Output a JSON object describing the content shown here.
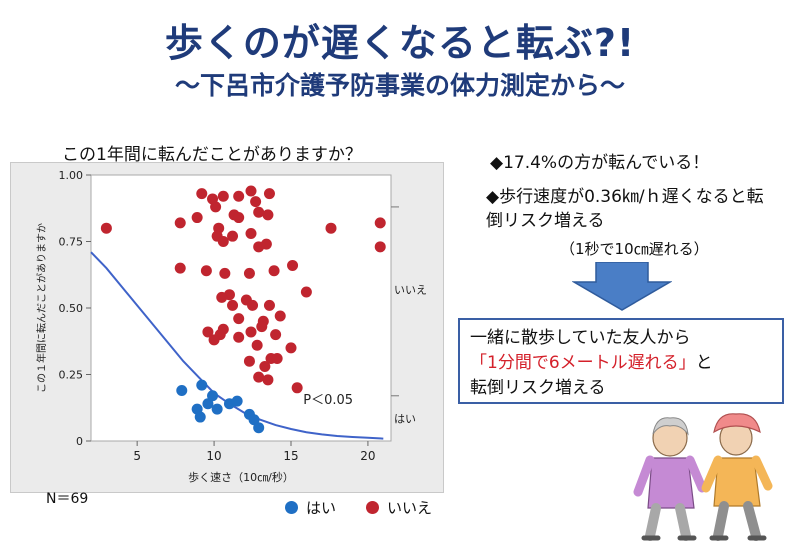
{
  "slide": {
    "title": "歩くのが遅くなると転ぶ?!",
    "subtitle": "〜下呂市介護予防事業の体力測定から〜",
    "chart_question": "この1年間に転んだことがありますか？",
    "n_label": "N＝69",
    "bullets": [
      {
        "text": "◆17.4%の方が転んでいる！"
      },
      {
        "text": "◆歩行速度が0.36㎞/ｈ遅くなると転倒リスク増える",
        "note": "（1秒で10㎝遅れる）"
      }
    ],
    "callout": {
      "line1": "一緒に散歩していた友人から",
      "highlight": "「1分間で6メートル遅れる」",
      "after_highlight": "と",
      "line3": "転倒リスク増える"
    },
    "colors": {
      "title": "#1f3b7a",
      "arrow": "#4a7ec6",
      "red": "#d4202a"
    }
  },
  "chart_data": {
    "type": "scatter",
    "title": "この1年間に転んだことがありますか？",
    "xlabel": "歩く速さ（10㎝/秒）",
    "ylabel": "この１年間に転んだことがありますか",
    "xlim": [
      2,
      21.5
    ],
    "ylim": [
      0,
      1
    ],
    "x_ticks": [
      5,
      10,
      15,
      20
    ],
    "y_ticks": [
      {
        "v": 0,
        "t": "0"
      },
      {
        "v": 0.25,
        "t": "0.25"
      },
      {
        "v": 0.5,
        "t": "0.50"
      },
      {
        "v": 0.75,
        "t": "0.75"
      },
      {
        "v": 1,
        "t": "1.00"
      }
    ],
    "grid": false,
    "annotation": "P＜0.05",
    "right_labels": {
      "no": "いいえ",
      "yes": "はい"
    },
    "legend_position": "bottom",
    "series": [
      {
        "name": "はい",
        "color": "#1f6fc4",
        "points": [
          [
            7.9,
            0.19
          ],
          [
            8.9,
            0.12
          ],
          [
            9.2,
            0.21
          ],
          [
            9.1,
            0.09
          ],
          [
            9.6,
            0.14
          ],
          [
            9.9,
            0.17
          ],
          [
            10.2,
            0.12
          ],
          [
            11.0,
            0.14
          ],
          [
            11.5,
            0.15
          ],
          [
            12.3,
            0.1
          ],
          [
            12.6,
            0.08
          ],
          [
            12.9,
            0.05
          ]
        ]
      },
      {
        "name": "いいえ",
        "color": "#c0252f",
        "points": [
          [
            3.0,
            0.8
          ],
          [
            7.8,
            0.82
          ],
          [
            7.8,
            0.65
          ],
          [
            9.2,
            0.93
          ],
          [
            8.9,
            0.84
          ],
          [
            9.9,
            0.91
          ],
          [
            10.1,
            0.88
          ],
          [
            10.6,
            0.92
          ],
          [
            9.5,
            0.64
          ],
          [
            10.3,
            0.8
          ],
          [
            10.2,
            0.77
          ],
          [
            10.6,
            0.75
          ],
          [
            11.2,
            0.77
          ],
          [
            11.3,
            0.85
          ],
          [
            11.6,
            0.92
          ],
          [
            11.6,
            0.84
          ],
          [
            12.4,
            0.94
          ],
          [
            12.7,
            0.9
          ],
          [
            12.9,
            0.86
          ],
          [
            13.6,
            0.93
          ],
          [
            13.5,
            0.85
          ],
          [
            12.4,
            0.78
          ],
          [
            12.9,
            0.73
          ],
          [
            13.4,
            0.74
          ],
          [
            10.7,
            0.63
          ],
          [
            11.0,
            0.55
          ],
          [
            12.3,
            0.63
          ],
          [
            13.9,
            0.64
          ],
          [
            15.1,
            0.66
          ],
          [
            16.0,
            0.56
          ],
          [
            10.5,
            0.54
          ],
          [
            11.2,
            0.51
          ],
          [
            12.1,
            0.53
          ],
          [
            12.5,
            0.51
          ],
          [
            13.6,
            0.51
          ],
          [
            14.3,
            0.47
          ],
          [
            11.6,
            0.46
          ],
          [
            13.2,
            0.45
          ],
          [
            10.4,
            0.4
          ],
          [
            9.6,
            0.41
          ],
          [
            10.0,
            0.38
          ],
          [
            10.6,
            0.42
          ],
          [
            11.6,
            0.39
          ],
          [
            12.4,
            0.41
          ],
          [
            13.1,
            0.43
          ],
          [
            14.0,
            0.4
          ],
          [
            12.8,
            0.36
          ],
          [
            15.0,
            0.35
          ],
          [
            12.3,
            0.3
          ],
          [
            13.7,
            0.31
          ],
          [
            14.1,
            0.31
          ],
          [
            12.9,
            0.24
          ],
          [
            13.5,
            0.23
          ],
          [
            13.3,
            0.28
          ],
          [
            15.4,
            0.2
          ],
          [
            17.6,
            0.8
          ],
          [
            20.8,
            0.82
          ],
          [
            20.8,
            0.73
          ]
        ]
      },
      {
        "name": "",
        "kind": "curve",
        "color": "#3f63c9",
        "points": [
          [
            2.0,
            0.71
          ],
          [
            3.0,
            0.65
          ],
          [
            4.0,
            0.58
          ],
          [
            5.0,
            0.51
          ],
          [
            6.0,
            0.44
          ],
          [
            7.0,
            0.37
          ],
          [
            8.0,
            0.3
          ],
          [
            9.0,
            0.24
          ],
          [
            10.0,
            0.18
          ],
          [
            11.0,
            0.14
          ],
          [
            12.0,
            0.105
          ],
          [
            13.0,
            0.08
          ],
          [
            14.0,
            0.06
          ],
          [
            15.0,
            0.045
          ],
          [
            16.0,
            0.033
          ],
          [
            17.0,
            0.025
          ],
          [
            18.0,
            0.019
          ],
          [
            19.0,
            0.015
          ],
          [
            20.0,
            0.012
          ],
          [
            21.0,
            0.009
          ]
        ]
      }
    ]
  }
}
